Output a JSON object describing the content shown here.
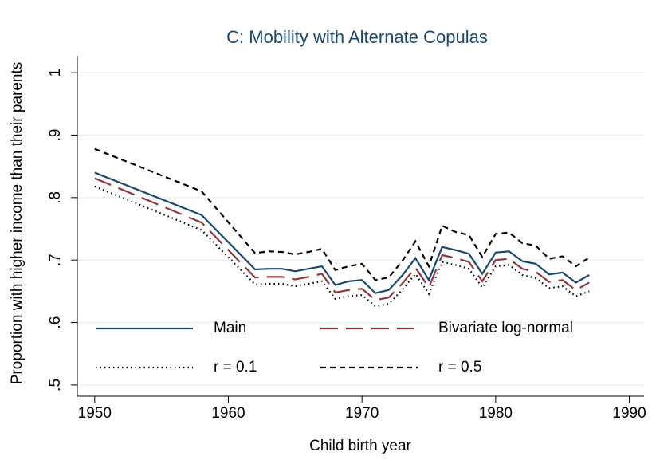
{
  "chart_data": {
    "type": "line",
    "title": "C: Mobility with Alternate Copulas",
    "x_label": "Child birth year",
    "y_label": "Proportion with higher income than their parents",
    "x": [
      1950,
      1958,
      1962,
      1963,
      1964,
      1965,
      1966,
      1967,
      1968,
      1969,
      1970,
      1971,
      1972,
      1973,
      1974,
      1975,
      1976,
      1977,
      1978,
      1979,
      1980,
      1981,
      1982,
      1983,
      1984,
      1985,
      1986,
      1987
    ],
    "series": [
      {
        "name": "Main",
        "color": "#1a476f",
        "dash": "solid",
        "values": [
          0.84,
          0.772,
          0.685,
          0.686,
          0.686,
          0.682,
          0.686,
          0.69,
          0.66,
          0.666,
          0.668,
          0.647,
          0.652,
          0.675,
          0.703,
          0.668,
          0.721,
          0.716,
          0.71,
          0.678,
          0.712,
          0.714,
          0.698,
          0.694,
          0.677,
          0.68,
          0.664,
          0.676
        ]
      },
      {
        "name": "Bivariate log-normal",
        "color": "#90353b",
        "dash": "longdash",
        "values": [
          0.831,
          0.76,
          0.672,
          0.673,
          0.673,
          0.669,
          0.673,
          0.678,
          0.648,
          0.652,
          0.654,
          0.636,
          0.64,
          0.662,
          0.688,
          0.656,
          0.708,
          0.703,
          0.697,
          0.666,
          0.7,
          0.702,
          0.686,
          0.681,
          0.665,
          0.668,
          0.652,
          0.664
        ]
      },
      {
        "name": "r = 0.1",
        "color": "#000000",
        "dash": "dot",
        "values": [
          0.818,
          0.748,
          0.661,
          0.662,
          0.662,
          0.658,
          0.662,
          0.666,
          0.638,
          0.642,
          0.644,
          0.626,
          0.63,
          0.652,
          0.678,
          0.646,
          0.697,
          0.692,
          0.686,
          0.656,
          0.69,
          0.692,
          0.676,
          0.671,
          0.655,
          0.658,
          0.642,
          0.65
        ]
      },
      {
        "name": "r = 0.5",
        "color": "#000000",
        "dash": "shortdash",
        "values": [
          0.878,
          0.81,
          0.711,
          0.714,
          0.713,
          0.709,
          0.713,
          0.718,
          0.684,
          0.69,
          0.694,
          0.668,
          0.672,
          0.698,
          0.73,
          0.69,
          0.755,
          0.745,
          0.74,
          0.705,
          0.742,
          0.744,
          0.727,
          0.723,
          0.702,
          0.706,
          0.69,
          0.704
        ]
      }
    ],
    "xlim": [
      1948.7,
      1991.1
    ],
    "xticks": [
      1950,
      1960,
      1970,
      1980,
      1990
    ],
    "ylim": [
      0.482,
      1.027
    ],
    "yticks": [
      {
        "value": 0.5,
        "label": ".5"
      },
      {
        "value": 0.6,
        "label": ".6"
      },
      {
        "value": 0.7,
        "label": ".7"
      },
      {
        "value": 0.8,
        "label": ".8"
      },
      {
        "value": 0.9,
        "label": ".9"
      },
      1
    ],
    "grid": true,
    "legend": "inside-bottom"
  }
}
